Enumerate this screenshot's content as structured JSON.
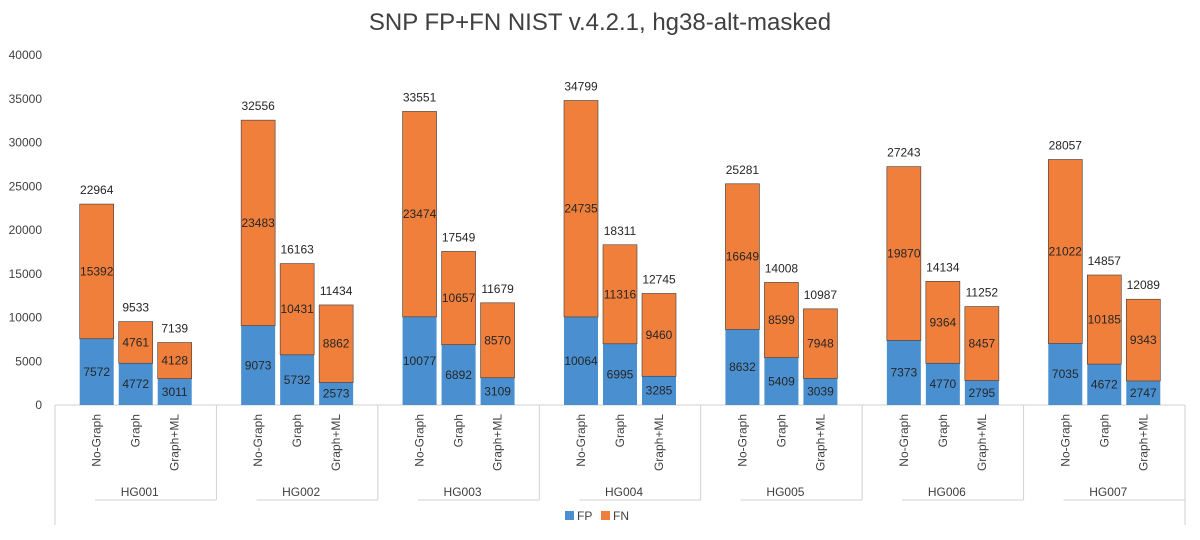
{
  "chart_data": {
    "type": "bar",
    "stacked": true,
    "title": "SNP FP+FN NIST v.4.2.1, hg38-alt-masked",
    "groups": [
      "HG001",
      "HG002",
      "HG003",
      "HG004",
      "HG005",
      "HG006",
      "HG007"
    ],
    "categories": [
      "No-Graph",
      "Graph",
      "Graph+ML"
    ],
    "series": [
      {
        "name": "FP",
        "color": "#4a90d0",
        "values": [
          [
            7572,
            4772,
            3011
          ],
          [
            9073,
            5732,
            2573
          ],
          [
            10077,
            6892,
            3109
          ],
          [
            10064,
            6995,
            3285
          ],
          [
            8632,
            5409,
            3039
          ],
          [
            7373,
            4770,
            2795
          ],
          [
            7035,
            4672,
            2747
          ]
        ]
      },
      {
        "name": "FN",
        "color": "#f07f3c",
        "values": [
          [
            15392,
            4761,
            4128
          ],
          [
            23483,
            10431,
            8862
          ],
          [
            23474,
            10657,
            8570
          ],
          [
            24735,
            11316,
            9460
          ],
          [
            16649,
            8599,
            7948
          ],
          [
            19870,
            9364,
            8457
          ],
          [
            21022,
            10185,
            9343
          ]
        ]
      }
    ],
    "totals": [
      [
        22964,
        9533,
        7139
      ],
      [
        32556,
        16163,
        11434
      ],
      [
        33551,
        17549,
        11679
      ],
      [
        34799,
        18311,
        12745
      ],
      [
        25281,
        14008,
        10987
      ],
      [
        27243,
        14134,
        11252
      ],
      [
        28057,
        14857,
        12089
      ]
    ],
    "ylim": [
      0,
      40000
    ],
    "yticks": [
      "0",
      "5000",
      "10000",
      "15000",
      "20000",
      "25000",
      "30000",
      "35000",
      "40000"
    ],
    "legend": {
      "position": "bottom",
      "entries": [
        "FP",
        "FN"
      ]
    },
    "grid": false
  }
}
